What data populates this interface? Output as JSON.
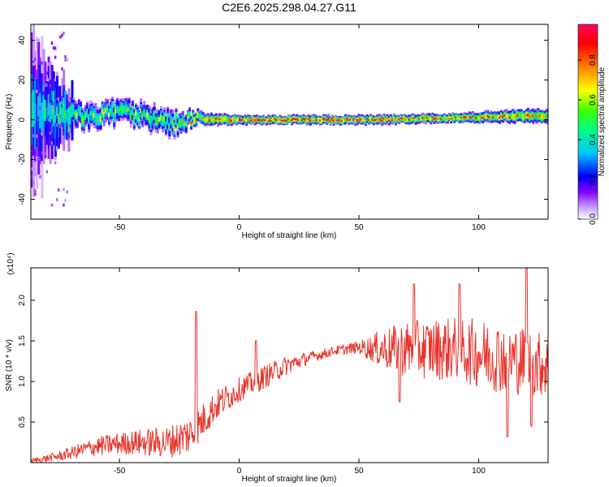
{
  "title": "C2E6.2025.298.04.27.G11",
  "chart_data": [
    {
      "type": "heatmap",
      "xlabel": "Height of straight line (km)",
      "ylabel": "Frequency (Hz)",
      "xlim": [
        -87,
        129
      ],
      "ylim": [
        -50,
        48
      ],
      "xticks": [
        -50,
        0,
        50,
        100
      ],
      "yticks": [
        -40,
        -20,
        0,
        20,
        40
      ],
      "colorbar": {
        "label": "Normalized spectral amplitude",
        "range": [
          0.0,
          0.98
        ],
        "ticks": [
          0.0,
          0.2,
          0.4,
          0.6,
          0.8
        ],
        "tick_labels": [
          "0.0",
          "0.2",
          "0.4",
          "0.6",
          "0.8"
        ],
        "colors": [
          "#ffffff",
          "#c7a0ff",
          "#8000ff",
          "#0000ff",
          "#00c8ff",
          "#00ff80",
          "#40ff00",
          "#ffff00",
          "#ff8000",
          "#ff0000",
          "#ff0060"
        ]
      },
      "ridge": [
        {
          "x": -85,
          "freq": 4,
          "width": 14,
          "amp": 0.35
        },
        {
          "x": -75,
          "freq": 3,
          "width": 6,
          "amp": 0.5
        },
        {
          "x": -60,
          "freq": 1,
          "width": 5,
          "amp": 0.55
        },
        {
          "x": -48,
          "freq": 5,
          "width": 5,
          "amp": 0.55
        },
        {
          "x": -38,
          "freq": 0,
          "width": 5,
          "amp": 0.55
        },
        {
          "x": -28,
          "freq": -2,
          "width": 5,
          "amp": 0.55
        },
        {
          "x": -20,
          "freq": 0,
          "width": 3,
          "amp": 0.7
        },
        {
          "x": 0,
          "freq": 0,
          "width": 2,
          "amp": 0.9
        },
        {
          "x": 30,
          "freq": 0,
          "width": 2,
          "amp": 0.95
        },
        {
          "x": 60,
          "freq": 0,
          "width": 2,
          "amp": 0.85
        },
        {
          "x": 90,
          "freq": 1,
          "width": 2,
          "amp": 0.8
        },
        {
          "x": 120,
          "freq": 2,
          "width": 3,
          "amp": 0.75
        },
        {
          "x": 129,
          "freq": 2,
          "width": 3,
          "amp": 0.7
        }
      ]
    },
    {
      "type": "line",
      "xlabel": "Height of straight line (km)",
      "ylabel": "SNR (10 * v/v)",
      "multiplier": "(x10⁴)",
      "xlim": [
        -87,
        129
      ],
      "ylim": [
        0,
        2.4
      ],
      "xticks": [
        -50,
        0,
        50,
        100
      ],
      "yticks": [
        0.5,
        1.0,
        1.5,
        2.0
      ],
      "ytick_labels": [
        "0.5",
        "1.0",
        "1.5",
        "2.0"
      ],
      "series": [
        {
          "color": "#e8332a",
          "trend": [
            {
              "x": -87,
              "y": 0.02,
              "amp": 0.03
            },
            {
              "x": -75,
              "y": 0.08,
              "amp": 0.06
            },
            {
              "x": -60,
              "y": 0.2,
              "amp": 0.12
            },
            {
              "x": -45,
              "y": 0.25,
              "amp": 0.15
            },
            {
              "x": -30,
              "y": 0.25,
              "amp": 0.2
            },
            {
              "x": -20,
              "y": 0.35,
              "amp": 0.25
            },
            {
              "x": -10,
              "y": 0.7,
              "amp": 0.2
            },
            {
              "x": 0,
              "y": 0.9,
              "amp": 0.15
            },
            {
              "x": 10,
              "y": 1.05,
              "amp": 0.15
            },
            {
              "x": 20,
              "y": 1.2,
              "amp": 0.12
            },
            {
              "x": 30,
              "y": 1.3,
              "amp": 0.07
            },
            {
              "x": 40,
              "y": 1.38,
              "amp": 0.06
            },
            {
              "x": 50,
              "y": 1.42,
              "amp": 0.08
            },
            {
              "x": 60,
              "y": 1.4,
              "amp": 0.25
            },
            {
              "x": 70,
              "y": 1.4,
              "amp": 0.35
            },
            {
              "x": 90,
              "y": 1.4,
              "amp": 0.4
            },
            {
              "x": 110,
              "y": 1.3,
              "amp": 0.45
            },
            {
              "x": 129,
              "y": 1.2,
              "amp": 0.4
            }
          ],
          "peaks": [
            {
              "x": -18,
              "y": 1.86
            },
            {
              "x": 7,
              "y": 1.5
            },
            {
              "x": 73,
              "y": 2.2
            },
            {
              "x": 92,
              "y": 2.2
            },
            {
              "x": 120,
              "y": 2.4
            }
          ],
          "dips": [
            {
              "x": 67,
              "y": 0.75
            },
            {
              "x": 112,
              "y": 0.32
            },
            {
              "x": 122,
              "y": 0.45
            }
          ]
        }
      ]
    }
  ]
}
